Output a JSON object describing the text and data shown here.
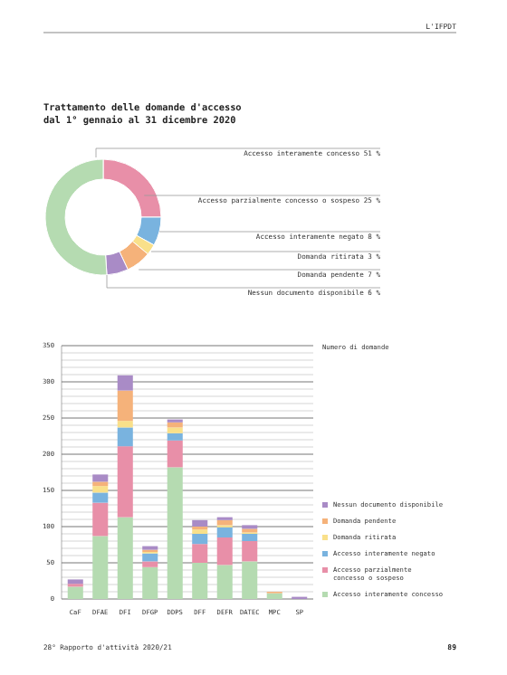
{
  "chart_data": [
    {
      "type": "donut",
      "title": "Trattamento delle domande d'accesso dal 1° gennaio al 31 dicembre 2020",
      "annotations": [
        "L'IFPDT"
      ],
      "categories": [
        "Accesso parzialmente concesso o sospeso",
        "Accesso interamente negato",
        "Domanda ritirata",
        "Domanda pendente",
        "Nessun documento disponibile",
        "Accesso interamente concesso"
      ],
      "values": [
        25,
        8,
        3,
        7,
        6,
        51
      ],
      "value_labels": [
        "25 %",
        "8 %",
        "3 %",
        "7 %",
        "6 %",
        "51 %"
      ],
      "colors": [
        "#e88fa8",
        "#79b3df",
        "#f9e08a",
        "#f5b27a",
        "#a98bc6",
        "#b5dbb1"
      ]
    },
    {
      "type": "bar",
      "stacked": true,
      "legend_title": "Numero di domande",
      "legend": "right",
      "grid": "y",
      "annotations": [
        "28° Rapporto d'attività 2020/21",
        "89"
      ],
      "categories": [
        "CaF",
        "DFAE",
        "DFI",
        "DFGP",
        "DDPS",
        "DFF",
        "DEFR",
        "DATEC",
        "MPC",
        "SP"
      ],
      "ylim": [
        0,
        350
      ],
      "yticks": [
        0,
        {
          "value": 10,
          "label": null
        },
        {
          "value": 20,
          "label": null
        },
        {
          "value": 30,
          "label": null
        },
        {
          "value": 40,
          "label": null
        },
        50,
        {
          "value": 60,
          "label": null
        },
        {
          "value": 70,
          "label": null
        },
        {
          "value": 80,
          "label": null
        },
        {
          "value": 90,
          "label": null
        },
        100,
        {
          "value": 110,
          "label": null
        },
        {
          "value": 120,
          "label": null
        },
        {
          "value": 130,
          "label": null
        },
        {
          "value": 140,
          "label": null
        },
        150,
        {
          "value": 160,
          "label": null
        },
        {
          "value": 170,
          "label": null
        },
        {
          "value": 180,
          "label": null
        },
        {
          "value": 190,
          "label": null
        },
        200,
        {
          "value": 210,
          "label": null
        },
        {
          "value": 220,
          "label": null
        },
        {
          "value": 230,
          "label": null
        },
        {
          "value": 240,
          "label": null
        },
        250,
        {
          "value": 260,
          "label": null
        },
        {
          "value": 270,
          "label": null
        },
        {
          "value": 280,
          "label": null
        },
        {
          "value": 290,
          "label": null
        },
        300,
        {
          "value": 310,
          "label": null
        },
        {
          "value": 320,
          "label": null
        },
        {
          "value": 330,
          "label": null
        },
        {
          "value": 340,
          "label": null
        },
        350
      ],
      "series": [
        {
          "name": "Accesso interamente concesso",
          "color": "#b5dbb1",
          "values": [
            17,
            87,
            113,
            44,
            182,
            50,
            47,
            52,
            8,
            0
          ]
        },
        {
          "name": "Accesso parzialmente concesso o sospeso",
          "color": "#e88fa8",
          "values": [
            4,
            46,
            98,
            8,
            37,
            26,
            38,
            28,
            0,
            0
          ]
        },
        {
          "name": "Accesso interamente negato",
          "color": "#79b3df",
          "values": [
            0,
            14,
            26,
            11,
            10,
            14,
            14,
            10,
            0,
            0
          ]
        },
        {
          "name": "Domanda ritirata",
          "color": "#f9e08a",
          "values": [
            0,
            9,
            9,
            2,
            8,
            6,
            3,
            2,
            0,
            0
          ]
        },
        {
          "name": "Domanda pendente",
          "color": "#f5b27a",
          "values": [
            0,
            6,
            42,
            3,
            7,
            4,
            7,
            5,
            2,
            0
          ]
        },
        {
          "name": "Nessun documento disponibile",
          "color": "#a98bc6",
          "values": [
            6,
            10,
            21,
            5,
            4,
            9,
            4,
            5,
            0,
            3
          ]
        }
      ]
    }
  ]
}
